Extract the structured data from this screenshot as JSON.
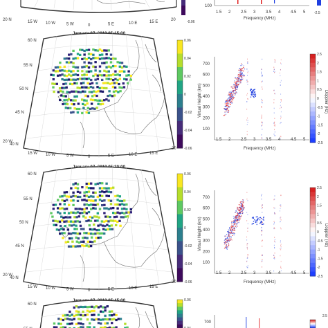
{
  "panels_left": [
    {
      "title": "",
      "lat_labels": [],
      "lon_labels": [
        "15 W",
        "10 W",
        "5 W",
        "0",
        "5 E",
        "10 E",
        "15 E"
      ],
      "corner_left": "20 N",
      "corner_right": "20"
    },
    {
      "title": "January 07, 2019 05:15:00",
      "lat_labels": [
        "60 N",
        "55 N",
        "50 N",
        "45 N",
        "40 N"
      ],
      "lon_labels": [
        "15 W",
        "10 W",
        "5 W",
        "0",
        "5 E",
        "10 E",
        "15 E"
      ],
      "corner_left": "20 W",
      "corner_right": "20"
    },
    {
      "title": "January 07, 2019 05:30:00",
      "lat_labels": [
        "60 N",
        "55 N",
        "50 N",
        "45 N",
        "40 N"
      ],
      "lon_labels": [
        "15 W",
        "10 W",
        "5 W",
        "0",
        "5 E",
        "10 E",
        "15 E"
      ],
      "corner_left": "20 W",
      "corner_right": "20"
    },
    {
      "title": "January 07, 2019 05:45:00",
      "lat_labels": [
        "60 N",
        "55 N"
      ],
      "lon_labels": [],
      "corner_left": "",
      "corner_right": ""
    }
  ],
  "colorbar_left": {
    "ticks_full": [
      "0.06",
      "0.04",
      "0.02",
      "0",
      "-0.02",
      "-0.04",
      "-0.06"
    ],
    "ticks_top": [
      "-0.06"
    ],
    "ticks_bottom": [
      "0.06",
      "0.04"
    ],
    "colors": [
      "#f9e721",
      "#b6de2b",
      "#5ec962",
      "#21a585",
      "#2c7f8e",
      "#3b528b",
      "#472c7a",
      "#3e0a5c"
    ]
  },
  "ionograms": [
    {
      "xlabel": "Frequency (MHz)",
      "xticks": [
        "1.5",
        "2",
        "2.5",
        "3",
        "3.5",
        "4",
        "4.5",
        "5"
      ],
      "yticks": [
        "100"
      ],
      "ylabel": "",
      "cb_ticks": [
        "-2.5"
      ],
      "cb_label": ""
    },
    {
      "xlabel": "Frequency (MHz)",
      "xticks": [
        "1.5",
        "2",
        "2.5",
        "3",
        "3.5",
        "4",
        "4.5",
        "5"
      ],
      "yticks": [
        "700",
        "600",
        "500",
        "400",
        "300",
        "200",
        "100"
      ],
      "ylabel": "Virtual Height (km)",
      "cb_ticks": [
        "2.5",
        "2",
        "1.5",
        "1",
        "0.5",
        "0",
        "-0.5",
        "-1",
        "-1.5",
        "-2",
        "-2.5"
      ],
      "cb_label": "Doppler (Hz)"
    },
    {
      "xlabel": "Frequency (MHz)",
      "xticks": [
        "1.5",
        "2",
        "2.5",
        "3",
        "3.5",
        "4",
        "4.5",
        "5"
      ],
      "yticks": [
        "700",
        "600",
        "500",
        "400",
        "300",
        "200",
        "100"
      ],
      "ylabel": "Virtual Height (km)",
      "cb_ticks": [
        "2.5",
        "2",
        "1.5",
        "1",
        "0.5",
        "0",
        "-0.5",
        "-1",
        "-1.5",
        "-2",
        "-2.5"
      ],
      "cb_label": "Doppler (Hz)"
    },
    {
      "xlabel": "",
      "xticks": [],
      "yticks": [
        "700"
      ],
      "ylabel": "",
      "cb_ticks": [
        "2.5"
      ],
      "cb_label": ""
    }
  ],
  "colors": {
    "doppler_pos": "#e02020",
    "doppler_neg": "#1f3fe0",
    "coast": "#6a6a6a",
    "frame": "#333333"
  }
}
